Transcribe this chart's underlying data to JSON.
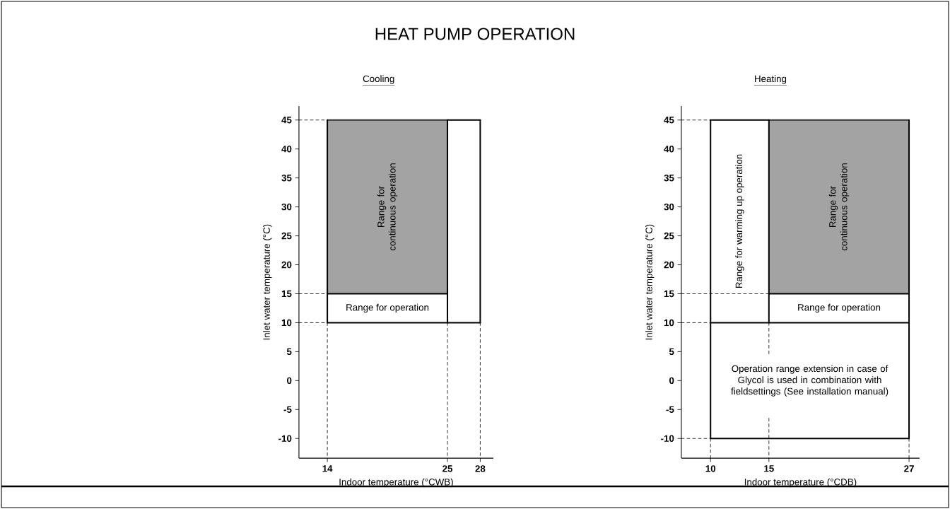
{
  "chart_data": [
    {
      "type": "line",
      "title": "Cooling",
      "xlabel": "Indoor temperature (°CWB)",
      "ylabel": "Inlet water temperature (°C)",
      "xlim": [
        11.4,
        29.2
      ],
      "ylim": [
        -13.4,
        47.4
      ],
      "xticks": [
        14,
        25,
        28
      ],
      "yticks": [
        -10,
        -5,
        0,
        5,
        10,
        15,
        20,
        25,
        30,
        35,
        40,
        45
      ],
      "grid": false,
      "annotations": [
        "HEAT PUMP OPERATION",
        "Range for continuous operation",
        "Range for operation"
      ],
      "series": [
        {
          "color": "#333333",
          "line_style": "solid",
          "x": [
            14,
            25
          ],
          "values": [
            45,
            45
          ],
          "lower": [
            15,
            15
          ],
          "upper": [
            45,
            45
          ]
        },
        {
          "type": "line",
          "color": "#000000",
          "line_style": "solid",
          "x": [
            25,
            28
          ],
          "values": [
            45,
            45
          ]
        },
        {
          "type": "line",
          "color": "#000000",
          "line_style": "solid",
          "x": [
            14,
            28
          ],
          "values": [
            10,
            10
          ]
        },
        {
          "type": "line",
          "color": "#000000",
          "line_style": "solid",
          "x": [
            14,
            14
          ],
          "values": [
            10,
            45
          ]
        },
        {
          "type": "line",
          "color": "#000000",
          "line_style": "solid",
          "x": [
            28,
            28
          ],
          "values": [
            10,
            45
          ]
        },
        {
          "type": "line",
          "color": "#000000",
          "line_style": "solid",
          "x": [
            25,
            25
          ],
          "values": [
            10,
            45
          ]
        },
        {
          "type": "line",
          "color": "#000000",
          "line_style": "solid",
          "x": [
            14,
            25
          ],
          "values": [
            15,
            15
          ]
        },
        {
          "type": "line",
          "color": "#000000",
          "line_style": "dashed",
          "x": [
            11.4,
            14
          ],
          "values": [
            45,
            45
          ]
        },
        {
          "type": "line",
          "color": "#000000",
          "line_style": "dashed",
          "x": [
            11.4,
            14
          ],
          "values": [
            15,
            15
          ]
        },
        {
          "type": "line",
          "color": "#000000",
          "line_style": "dashed",
          "x": [
            11.4,
            14
          ],
          "values": [
            10,
            10
          ]
        },
        {
          "type": "line",
          "color": "#000000",
          "line_style": "dashed",
          "x": [
            14,
            14
          ],
          "values": [
            10,
            -13.4
          ]
        },
        {
          "type": "line",
          "color": "#000000",
          "line_style": "dashed",
          "x": [
            25,
            25
          ],
          "values": [
            10,
            -13.4
          ]
        },
        {
          "type": "line",
          "color": "#000000",
          "line_style": "dashed",
          "x": [
            28,
            28
          ],
          "values": [
            10,
            -13.4
          ]
        }
      ]
    },
    {
      "type": "line",
      "title": "Heating",
      "xlabel": "Indoor temperature (°CDB)",
      "ylabel": "Inlet water temperature (°C)",
      "xlim": [
        7.5,
        27.9
      ],
      "ylim": [
        -13.4,
        47.4
      ],
      "xticks": [
        10,
        15,
        27
      ],
      "yticks": [
        -10,
        -5,
        0,
        5,
        10,
        15,
        20,
        25,
        30,
        35,
        40,
        45
      ],
      "grid": false,
      "annotations": [
        "Range for warming up operation",
        "Range for continuous operation",
        "Range for operation",
        "Operation range extension in case of Glycol is used in combination with fieldsettings (See installation manual)"
      ],
      "series": [
        {
          "color": "#333333",
          "line_style": "solid",
          "x": [
            15,
            27
          ],
          "values": [
            45,
            45
          ],
          "lower": [
            15,
            15
          ],
          "upper": [
            45,
            45
          ]
        },
        {
          "type": "line",
          "color": "#000000",
          "line_style": "solid",
          "x": [
            10,
            15
          ],
          "values": [
            45,
            45
          ]
        },
        {
          "type": "line",
          "color": "#000000",
          "line_style": "solid",
          "x": [
            10,
            27
          ],
          "values": [
            -10,
            -10
          ]
        },
        {
          "type": "line",
          "color": "#000000",
          "line_style": "solid",
          "x": [
            10,
            10
          ],
          "values": [
            -10,
            45
          ]
        },
        {
          "type": "line",
          "color": "#000000",
          "line_style": "solid",
          "x": [
            27,
            27
          ],
          "values": [
            -10,
            45
          ]
        },
        {
          "type": "line",
          "color": "#000000",
          "line_style": "solid",
          "x": [
            15,
            15
          ],
          "values": [
            10,
            45
          ]
        },
        {
          "type": "line",
          "color": "#000000",
          "line_style": "solid",
          "x": [
            10,
            27
          ],
          "values": [
            10,
            10
          ]
        },
        {
          "type": "line",
          "color": "#000000",
          "line_style": "solid",
          "x": [
            15,
            27
          ],
          "values": [
            15,
            15
          ]
        },
        {
          "type": "line",
          "color": "#000000",
          "line_style": "dashed",
          "x": [
            7.5,
            10
          ],
          "values": [
            45,
            45
          ]
        },
        {
          "type": "line",
          "color": "#000000",
          "line_style": "dashed",
          "x": [
            7.5,
            15
          ],
          "values": [
            15,
            15
          ]
        },
        {
          "type": "line",
          "color": "#000000",
          "line_style": "dashed",
          "x": [
            7.5,
            10
          ],
          "values": [
            10,
            10
          ]
        },
        {
          "type": "line",
          "color": "#000000",
          "line_style": "dashed",
          "x": [
            7.5,
            10
          ],
          "values": [
            -10,
            -10
          ]
        },
        {
          "type": "line",
          "color": "#000000",
          "line_style": "dashed",
          "x": [
            10,
            10
          ],
          "values": [
            -10,
            -13.4
          ]
        },
        {
          "type": "line",
          "color": "#000000",
          "line_style": "dashed",
          "x": [
            15,
            15
          ],
          "values": [
            10,
            4.5
          ]
        },
        {
          "type": "line",
          "color": "#000000",
          "line_style": "dashed",
          "x": [
            15,
            15
          ],
          "values": [
            -6.5,
            -13.4
          ]
        },
        {
          "type": "line",
          "color": "#000000",
          "line_style": "dashed",
          "x": [
            27,
            27
          ],
          "values": [
            -10,
            -13.4
          ]
        }
      ]
    }
  ]
}
